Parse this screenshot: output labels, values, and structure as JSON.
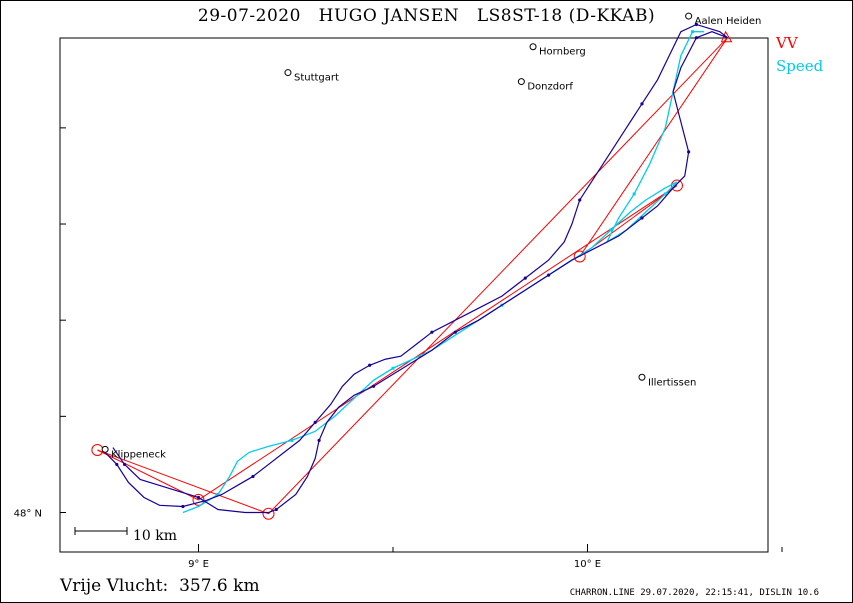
{
  "title": "29-07-2020   HUGO JANSEN   LS8ST-18 (D-KKAB)",
  "legend": {
    "vv": {
      "label": "VV",
      "color": "#ff0000"
    },
    "speed": {
      "label": "Speed",
      "color": "#00ccee"
    }
  },
  "axes": {
    "x_ticks": [
      {
        "label": "9° E",
        "lon": 9.0
      },
      {
        "label": "10° E",
        "lon": 10.0
      }
    ],
    "y_ticks": [
      {
        "label": "48° N",
        "lat": 48.0
      }
    ]
  },
  "scale_bar": {
    "label": "10  km"
  },
  "towns": [
    {
      "name": "Aalen Heiden",
      "lon": 10.26,
      "lat": 48.826
    },
    {
      "name": "Hornberg",
      "lon": 9.86,
      "lat": 48.775
    },
    {
      "name": "Stuttgart",
      "lon": 9.23,
      "lat": 48.732
    },
    {
      "name": "Donzdorf",
      "lon": 9.83,
      "lat": 48.717
    },
    {
      "name": "Illertissen",
      "lon": 10.14,
      "lat": 48.225
    },
    {
      "name": "Klippeneck",
      "lon": 8.76,
      "lat": 48.105
    }
  ],
  "track_colors": {
    "flight": "#1a0099",
    "speed": "#00ccee",
    "task": "#ff0000"
  },
  "task": {
    "waypoints": [
      {
        "lon": 8.74,
        "lat": 48.104
      },
      {
        "lon": 9.18,
        "lat": 47.998
      },
      {
        "lon": 10.36,
        "lat": 48.79
      },
      {
        "lon": 9.98,
        "lat": 48.426
      },
      {
        "lon": 10.23,
        "lat": 48.544
      },
      {
        "lon": 9.0,
        "lat": 48.021
      },
      {
        "lon": 8.74,
        "lat": 48.104
      }
    ],
    "turnpoint_circles": [
      {
        "lon": 8.74,
        "lat": 48.104
      },
      {
        "lon": 9.18,
        "lat": 47.998
      },
      {
        "lon": 9.98,
        "lat": 48.426
      },
      {
        "lon": 10.23,
        "lat": 48.544
      },
      {
        "lon": 9.0,
        "lat": 48.021
      }
    ]
  },
  "flight_track": [
    [
      8.78,
      48.108
    ],
    [
      8.81,
      48.08
    ],
    [
      8.85,
      48.055
    ],
    [
      8.9,
      48.045
    ],
    [
      8.95,
      48.035
    ],
    [
      9.0,
      48.025
    ],
    [
      9.05,
      48.005
    ],
    [
      9.12,
      48.0
    ],
    [
      9.18,
      48.0
    ],
    [
      9.2,
      48.005
    ],
    [
      9.25,
      48.03
    ],
    [
      9.28,
      48.06
    ],
    [
      9.3,
      48.09
    ],
    [
      9.31,
      48.12
    ],
    [
      9.33,
      48.15
    ],
    [
      9.36,
      48.175
    ],
    [
      9.4,
      48.195
    ],
    [
      9.45,
      48.21
    ],
    [
      9.5,
      48.23
    ],
    [
      9.55,
      48.25
    ],
    [
      9.6,
      48.27
    ],
    [
      9.66,
      48.3
    ],
    [
      9.72,
      48.32
    ],
    [
      9.78,
      48.345
    ],
    [
      9.84,
      48.37
    ],
    [
      9.9,
      48.395
    ],
    [
      9.96,
      48.42
    ],
    [
      10.02,
      48.44
    ],
    [
      10.08,
      48.46
    ],
    [
      10.14,
      48.49
    ],
    [
      10.18,
      48.51
    ],
    [
      10.22,
      48.54
    ],
    [
      10.25,
      48.56
    ],
    [
      10.26,
      48.6
    ],
    [
      10.24,
      48.65
    ],
    [
      10.22,
      48.7
    ],
    [
      10.24,
      48.74
    ],
    [
      10.28,
      48.79
    ],
    [
      10.32,
      48.8
    ],
    [
      10.36,
      48.79
    ],
    [
      10.34,
      48.8
    ],
    [
      10.28,
      48.812
    ],
    [
      10.24,
      48.8
    ],
    [
      10.21,
      48.76
    ],
    [
      10.18,
      48.72
    ],
    [
      10.14,
      48.68
    ],
    [
      10.1,
      48.64
    ],
    [
      10.06,
      48.6
    ],
    [
      10.02,
      48.56
    ],
    [
      9.98,
      48.52
    ],
    [
      9.96,
      48.48
    ],
    [
      9.94,
      48.45
    ],
    [
      9.9,
      48.42
    ],
    [
      9.84,
      48.39
    ],
    [
      9.78,
      48.36
    ],
    [
      9.72,
      48.34
    ],
    [
      9.66,
      48.32
    ],
    [
      9.6,
      48.3
    ],
    [
      9.56,
      48.28
    ],
    [
      9.52,
      48.26
    ],
    [
      9.48,
      48.255
    ],
    [
      9.44,
      48.245
    ],
    [
      9.4,
      48.23
    ],
    [
      9.37,
      48.21
    ],
    [
      9.34,
      48.18
    ],
    [
      9.3,
      48.15
    ],
    [
      9.26,
      48.12
    ],
    [
      9.22,
      48.1
    ],
    [
      9.18,
      48.08
    ],
    [
      9.14,
      48.06
    ],
    [
      9.1,
      48.045
    ],
    [
      9.06,
      48.03
    ],
    [
      9.02,
      48.02
    ],
    [
      8.96,
      48.01
    ],
    [
      8.9,
      48.012
    ],
    [
      8.86,
      48.025
    ],
    [
      8.82,
      48.05
    ],
    [
      8.79,
      48.08
    ],
    [
      8.76,
      48.1
    ]
  ],
  "speed_track": [
    [
      8.96,
      48.0
    ],
    [
      9.0,
      48.01
    ],
    [
      9.05,
      48.03
    ],
    [
      9.08,
      48.06
    ],
    [
      9.1,
      48.085
    ],
    [
      9.13,
      48.1
    ],
    [
      9.18,
      48.11
    ],
    [
      9.24,
      48.12
    ],
    [
      9.3,
      48.135
    ],
    [
      9.35,
      48.16
    ],
    [
      9.4,
      48.19
    ],
    [
      9.45,
      48.22
    ],
    [
      9.5,
      48.24
    ],
    [
      9.55,
      48.255
    ],
    [
      9.6,
      48.27
    ],
    [
      9.66,
      48.295
    ],
    [
      9.72,
      48.32
    ],
    [
      9.78,
      48.345
    ],
    [
      9.84,
      48.37
    ],
    [
      9.9,
      48.395
    ],
    [
      9.96,
      48.42
    ],
    [
      10.01,
      48.44
    ],
    [
      10.06,
      48.47
    ],
    [
      10.11,
      48.5
    ],
    [
      10.15,
      48.52
    ],
    [
      10.2,
      48.54
    ],
    [
      10.23,
      48.55
    ],
    [
      10.2,
      48.53
    ],
    [
      10.15,
      48.5
    ],
    [
      10.1,
      48.47
    ],
    [
      10.05,
      48.45
    ],
    [
      10.08,
      48.49
    ],
    [
      10.12,
      48.53
    ],
    [
      10.16,
      48.58
    ],
    [
      10.2,
      48.64
    ],
    [
      10.22,
      48.7
    ],
    [
      10.24,
      48.76
    ],
    [
      10.27,
      48.8
    ],
    [
      10.3,
      48.8
    ]
  ],
  "footer": {
    "distance_label": "Vrije Vlucht:  357.6 km",
    "meta": "CHARRON.LINE 29.07.2020, 22:15:41, DISLIN 10.6"
  }
}
